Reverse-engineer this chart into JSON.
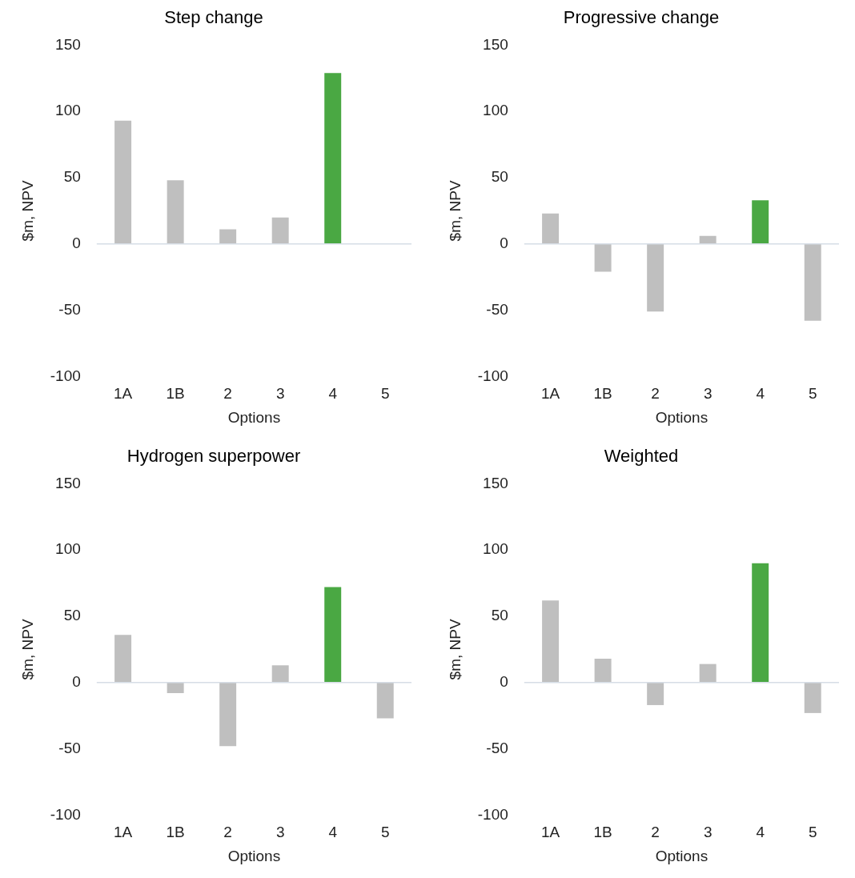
{
  "chart_data": [
    {
      "type": "bar",
      "title": "Step change",
      "xlabel": "Options",
      "ylabel": "$m, NPV",
      "categories": [
        "1A",
        "1B",
        "2",
        "3",
        "4",
        "5"
      ],
      "values": [
        93,
        48,
        11,
        20,
        129,
        0
      ],
      "colors": [
        "#bfbfbf",
        "#bfbfbf",
        "#bfbfbf",
        "#bfbfbf",
        "#4aa843",
        "#bfbfbf"
      ],
      "ylim": [
        -100,
        150
      ],
      "yticks": [
        -100,
        -50,
        0,
        50,
        100,
        150
      ]
    },
    {
      "type": "bar",
      "title": "Progressive change",
      "xlabel": "Options",
      "ylabel": "$m, NPV",
      "categories": [
        "1A",
        "1B",
        "2",
        "3",
        "4",
        "5"
      ],
      "values": [
        23,
        -21,
        -51,
        6,
        33,
        -58
      ],
      "colors": [
        "#bfbfbf",
        "#bfbfbf",
        "#bfbfbf",
        "#bfbfbf",
        "#4aa843",
        "#bfbfbf"
      ],
      "ylim": [
        -100,
        150
      ],
      "yticks": [
        -100,
        -50,
        0,
        50,
        100,
        150
      ]
    },
    {
      "type": "bar",
      "title": "Hydrogen superpower",
      "xlabel": "Options",
      "ylabel": "$m, NPV",
      "categories": [
        "1A",
        "1B",
        "2",
        "3",
        "4",
        "5"
      ],
      "values": [
        36,
        -8,
        -48,
        13,
        72,
        -27
      ],
      "colors": [
        "#bfbfbf",
        "#bfbfbf",
        "#bfbfbf",
        "#bfbfbf",
        "#4aa843",
        "#bfbfbf"
      ],
      "ylim": [
        -100,
        150
      ],
      "yticks": [
        -100,
        -50,
        0,
        50,
        100,
        150
      ]
    },
    {
      "type": "bar",
      "title": "Weighted",
      "xlabel": "Options",
      "ylabel": "$m, NPV",
      "categories": [
        "1A",
        "1B",
        "2",
        "3",
        "4",
        "5"
      ],
      "values": [
        62,
        18,
        -17,
        14,
        90,
        -23
      ],
      "colors": [
        "#bfbfbf",
        "#bfbfbf",
        "#bfbfbf",
        "#bfbfbf",
        "#4aa843",
        "#bfbfbf"
      ],
      "ylim": [
        -100,
        150
      ],
      "yticks": [
        -100,
        -50,
        0,
        50,
        100,
        150
      ]
    }
  ]
}
